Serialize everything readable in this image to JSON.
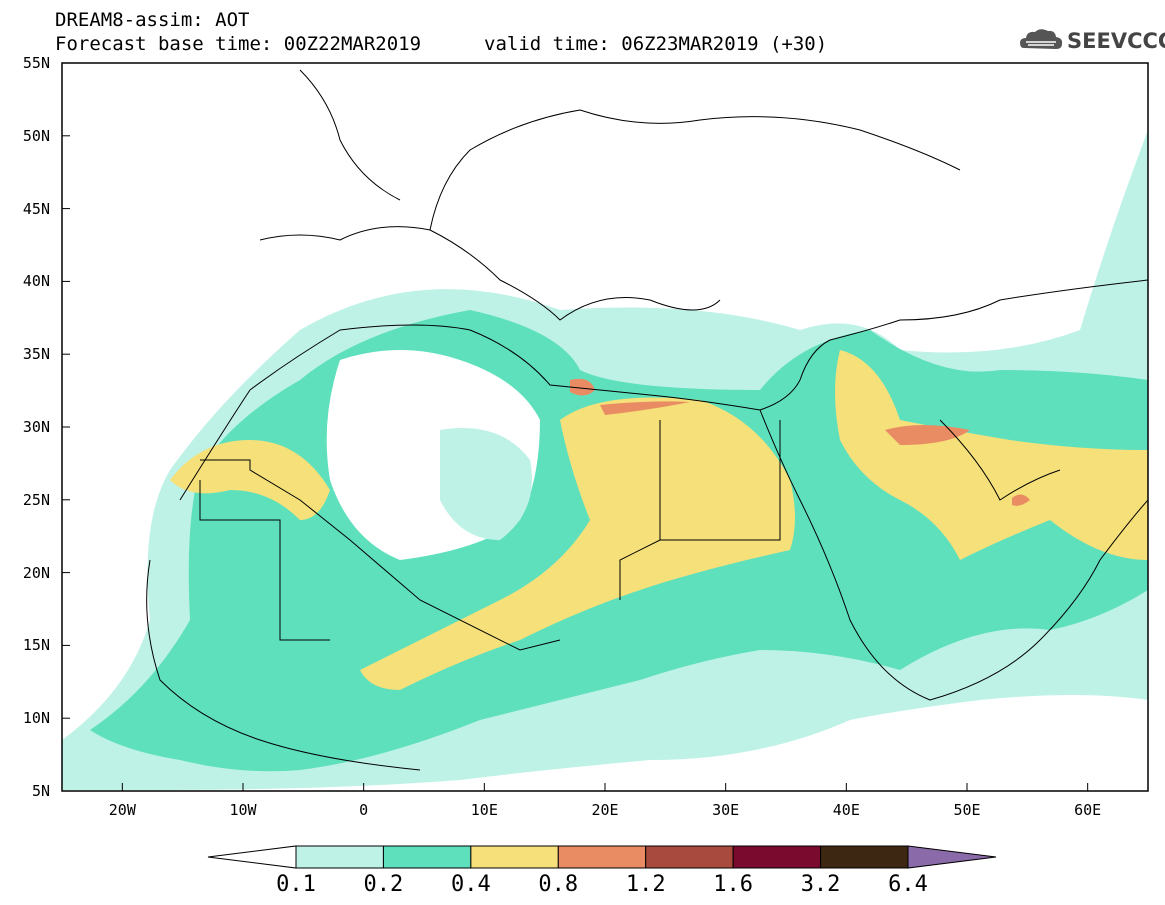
{
  "header": {
    "title": "DREAM8-assim: AOT",
    "base_time": "Forecast base time: 00Z22MAR2019",
    "valid_time": "valid time: 06Z23MAR2019 (+30)",
    "logo_text": "SEEVCCC"
  },
  "map": {
    "lat_labels": [
      "55N",
      "50N",
      "45N",
      "40N",
      "35N",
      "30N",
      "25N",
      "20N",
      "15N",
      "10N",
      "5N"
    ],
    "lon_labels": [
      "20W",
      "10W",
      "0",
      "10E",
      "20E",
      "30E",
      "40E",
      "50E",
      "60E"
    ],
    "lon_range": [
      -25,
      65
    ],
    "lat_range": [
      5,
      55
    ]
  },
  "colorbar": {
    "levels": [
      "0.1",
      "0.2",
      "0.4",
      "0.8",
      "1.2",
      "1.6",
      "3.2",
      "6.4"
    ],
    "colors": [
      "#ffffff",
      "#bff2e6",
      "#5ee0bd",
      "#f5e07a",
      "#e98c64",
      "#a84a3e",
      "#7a0a2e",
      "#3e2712",
      "#8a6aa8"
    ],
    "field_colors": {
      "c1": "#bff2e6",
      "c2": "#5ee0bd",
      "c3": "#f5e07a",
      "c4": "#e98c64"
    }
  }
}
